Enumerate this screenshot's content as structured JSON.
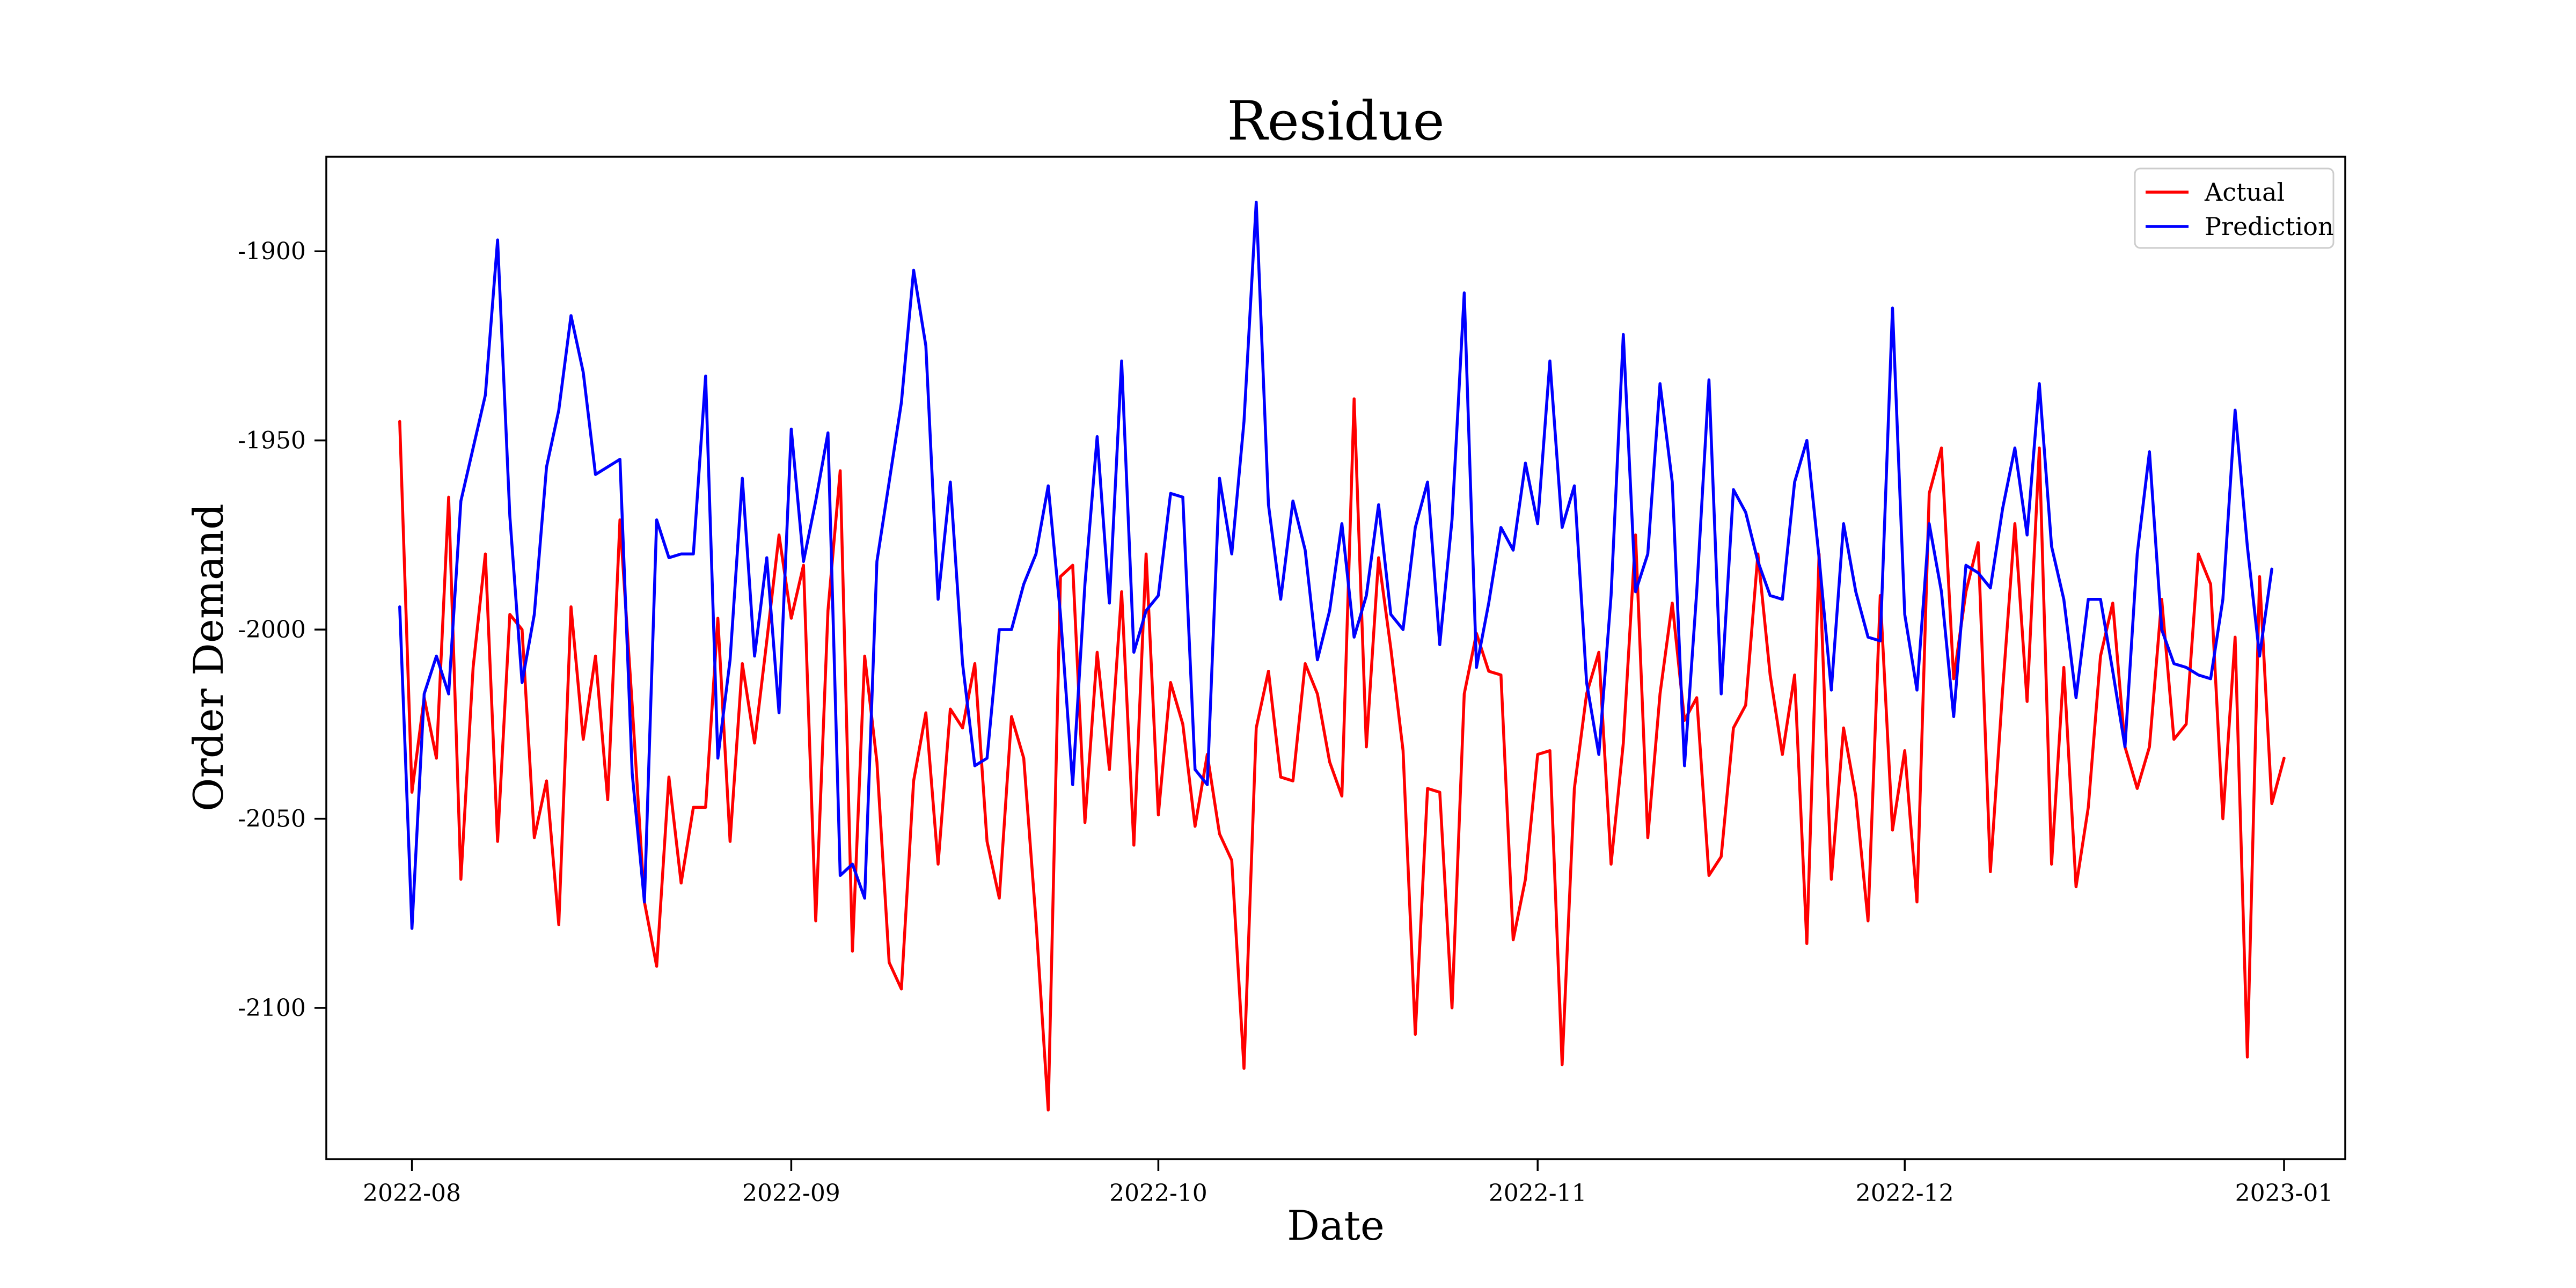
{
  "chart_data": {
    "type": "line",
    "title": "Residue",
    "xlabel": "Date",
    "ylabel": "Order Demand",
    "start_date": "2022-07-31",
    "x_ticks": [
      {
        "label": "2022-08",
        "date": "2022-08-01"
      },
      {
        "label": "2022-09",
        "date": "2022-09-01"
      },
      {
        "label": "2022-10",
        "date": "2022-10-01"
      },
      {
        "label": "2022-11",
        "date": "2022-11-01"
      },
      {
        "label": "2022-12",
        "date": "2022-12-01"
      },
      {
        "label": "2023-01",
        "date": "2023-01-01"
      }
    ],
    "xlim": [
      "2022-07-25",
      "2023-01-06"
    ],
    "y_ticks": [
      {
        "label": "-1900",
        "value": -1900
      },
      {
        "label": "-1950",
        "value": -1950
      },
      {
        "label": "-2000",
        "value": -2000
      },
      {
        "label": "-2050",
        "value": -2050
      },
      {
        "label": "-2100",
        "value": -2100
      }
    ],
    "ylim": [
      -2140,
      -1875
    ],
    "grid": false,
    "legend_position": "top-right",
    "series": [
      {
        "name": "Actual",
        "color": "#ff0000",
        "values": [
          -1945,
          -2043,
          -2018,
          -2034,
          -1965,
          -2066,
          -2010,
          -1980,
          -2056,
          -1996,
          -2000,
          -2055,
          -2040,
          -2078,
          -1994,
          -2029,
          -2007,
          -2045,
          -1971,
          -2020,
          -2072,
          -2089,
          -2039,
          -2067,
          -2047,
          -2047,
          -1997,
          -2056,
          -2009,
          -2030,
          -2003,
          -1975,
          -1997,
          -1983,
          -2077,
          -1995,
          -1958,
          -2085,
          -2007,
          -2035,
          -2088,
          -2095,
          -2040,
          -2022,
          -2062,
          -2021,
          -2026,
          -2009,
          -2056,
          -2071,
          -2023,
          -2034,
          -2077,
          -2127,
          -1986,
          -1983,
          -2051,
          -2006,
          -2037,
          -1990,
          -2057,
          -1980,
          -2049,
          -2014,
          -2025,
          -2052,
          -2033,
          -2054,
          -2061,
          -2116,
          -2026,
          -2011,
          -2039,
          -2040,
          -2009,
          -2017,
          -2035,
          -2044,
          -1939,
          -2031,
          -1981,
          -2005,
          -2032,
          -2107,
          -2042,
          -2043,
          -2100,
          -2017,
          -2001,
          -2011,
          -2012,
          -2082,
          -2066,
          -2033,
          -2032,
          -2115,
          -2042,
          -2017,
          -2006,
          -2062,
          -2030,
          -1975,
          -2055,
          -2017,
          -1993,
          -2024,
          -2018,
          -2065,
          -2060,
          -2026,
          -2020,
          -1980,
          -2012,
          -2033,
          -2012,
          -2083,
          -1980,
          -2066,
          -2026,
          -2044,
          -2077,
          -1991,
          -2053,
          -2032,
          -2072,
          -1964,
          -1952,
          -2013,
          -1990,
          -1977,
          -2064,
          -2016,
          -1972,
          -2019,
          -1952,
          -2062,
          -2010,
          -2068,
          -2047,
          -2007,
          -1993,
          -2031,
          -2042,
          -2031,
          -1992,
          -2029,
          -2025,
          -1980,
          -1988,
          -2050,
          -2002,
          -2113,
          -1986,
          -2046,
          -2034
        ]
      },
      {
        "name": "Prediction",
        "color": "#0000ff",
        "values": [
          -1994,
          -2079,
          -2017,
          -2007,
          -2017,
          -1966,
          -1952,
          -1938,
          -1897,
          -1970,
          -2014,
          -1996,
          -1957,
          -1942,
          -1917,
          -1932,
          -1959,
          -1957,
          -1955,
          -2038,
          -2072,
          -1971,
          -1981,
          -1980,
          -1980,
          -1933,
          -2034,
          -2008,
          -1960,
          -2007,
          -1981,
          -2022,
          -1947,
          -1982,
          -1966,
          -1948,
          -2065,
          -2062,
          -2071,
          -1982,
          -1961,
          -1940,
          -1905,
          -1925,
          -1992,
          -1961,
          -2009,
          -2036,
          -2034,
          -2000,
          -2000,
          -1988,
          -1980,
          -1962,
          -1996,
          -2041,
          -1988,
          -1949,
          -1993,
          -1929,
          -2006,
          -1995,
          -1991,
          -1964,
          -1965,
          -2037,
          -2041,
          -1960,
          -1980,
          -1945,
          -1887,
          -1967,
          -1992,
          -1966,
          -1979,
          -2008,
          -1995,
          -1972,
          -2002,
          -1991,
          -1967,
          -1996,
          -2000,
          -1973,
          -1961,
          -2004,
          -1971,
          -1911,
          -2010,
          -1993,
          -1973,
          -1979,
          -1956,
          -1972,
          -1929,
          -1973,
          -1962,
          -2014,
          -2033,
          -1991,
          -1922,
          -1990,
          -1980,
          -1935,
          -1961,
          -2036,
          -1990,
          -1934,
          -2017,
          -1963,
          -1969,
          -1982,
          -1991,
          -1992,
          -1961,
          -1950,
          -1981,
          -2016,
          -1972,
          -1990,
          -2002,
          -2003,
          -1915,
          -1996,
          -2016,
          -1972,
          -1990,
          -2023,
          -1983,
          -1985,
          -1989,
          -1968,
          -1952,
          -1975,
          -1935,
          -1978,
          -1992,
          -2018,
          -1992,
          -1992,
          -2011,
          -2031,
          -1980,
          -1953,
          -2000,
          -2009,
          -2010,
          -2012,
          -2013,
          -1992,
          -1942,
          -1978,
          -2007,
          -1984
        ]
      }
    ]
  }
}
